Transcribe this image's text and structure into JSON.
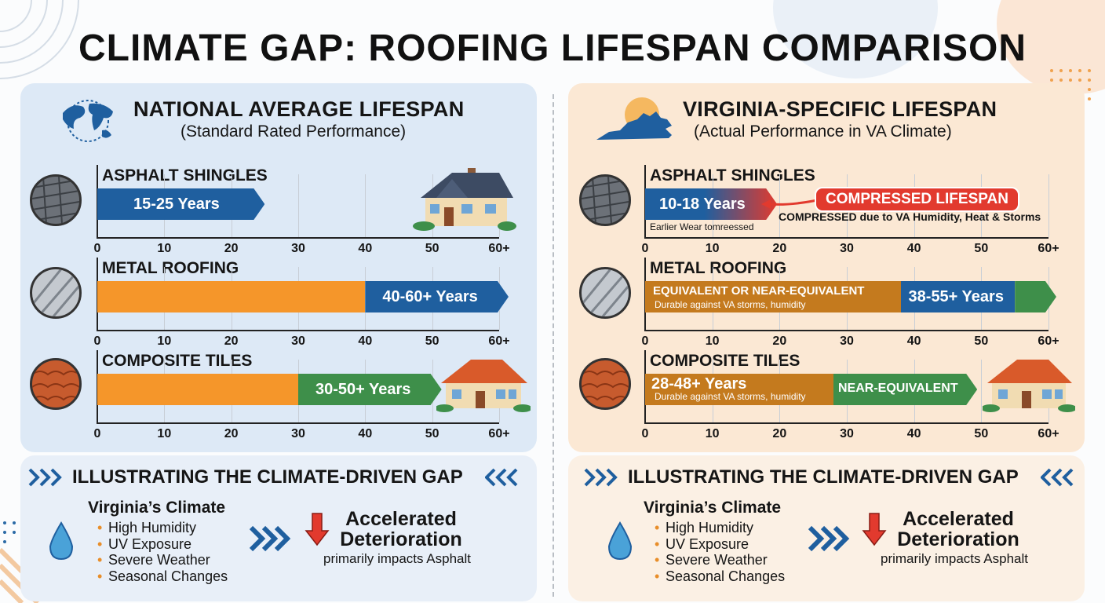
{
  "title": "CLIMATE GAP: ROOFING LIFESPAN COMPARISON",
  "colors": {
    "blue": "#1f5f9f",
    "orange": "#f5962a",
    "green": "#3e8f4a",
    "brown": "#c47a1e",
    "red": "#e23a2e"
  },
  "national": {
    "heading": "NATIONAL AVERAGE LIFESPAN",
    "subheading": "(Standard Rated Performance)",
    "icon": "globe-icon"
  },
  "virginia": {
    "heading": "VIRGINIA-SPECIFIC LIFESPAN",
    "subheading": "(Actual Performance in VA Climate)",
    "icon": "virginia-map-icon",
    "compressed_badge": "COMPRESSED LIFESPAN",
    "compressed_note": "COMPRESSED due to VA Humidity, Heat & Storms",
    "asphalt_note": "Earlier Wear tomreessed",
    "metal_note_title": "EQUIVALENT OR NEAR-EQUIVALENT",
    "metal_note_sub": "Durable against VA storms, humidity",
    "composite_note_sub": "Durable against VA storms, humidity",
    "composite_tag": "NEAR-EQUIVALENT"
  },
  "gap": {
    "title": "ILLUSTRATING THE CLIMATE-DRIVEN GAP",
    "climate_heading": "Virginia’s Climate",
    "factors": [
      "High Humidity",
      "UV Exposure",
      "Severe Weather",
      "Seasonal Changes"
    ],
    "result_title": "Accelerated Deterioration",
    "result_sub": "primarily impacts Asphalt"
  },
  "chart_data": [
    {
      "type": "bar",
      "title": "NATIONAL AVERAGE LIFESPAN",
      "xlabel": "",
      "ylabel": "",
      "xlim": [
        0,
        60
      ],
      "x_ticks": [
        "0",
        "10",
        "20",
        "30",
        "40",
        "50",
        "60+"
      ],
      "categories": [
        "ASPHALT SHINGLES",
        "METAL ROOFING",
        "COMPOSITE TILES"
      ],
      "series": [
        {
          "category": "ASPHALT SHINGLES",
          "low": 15,
          "high": 25,
          "label": "15-25 Years"
        },
        {
          "category": "METAL ROOFING",
          "low": 40,
          "high": 60,
          "label": "40-60+ Years"
        },
        {
          "category": "COMPOSITE TILES",
          "low": 30,
          "high": 50,
          "label": "30-50+ Years"
        }
      ]
    },
    {
      "type": "bar",
      "title": "VIRGINIA-SPECIFIC LIFESPAN",
      "xlabel": "",
      "ylabel": "",
      "xlim": [
        0,
        60
      ],
      "x_ticks": [
        "0",
        "10",
        "20",
        "30",
        "40",
        "50",
        "60+"
      ],
      "categories": [
        "ASPHALT SHINGLES",
        "METAL ROOFING",
        "COMPOSITE TILES"
      ],
      "series": [
        {
          "category": "ASPHALT SHINGLES",
          "low": 10,
          "high": 18,
          "label": "10-18 Years"
        },
        {
          "category": "METAL ROOFING",
          "low": 38,
          "high": 55,
          "label": "38-55+ Years"
        },
        {
          "category": "COMPOSITE TILES",
          "low": 28,
          "high": 48,
          "label": "28-48+ Years"
        }
      ]
    }
  ]
}
